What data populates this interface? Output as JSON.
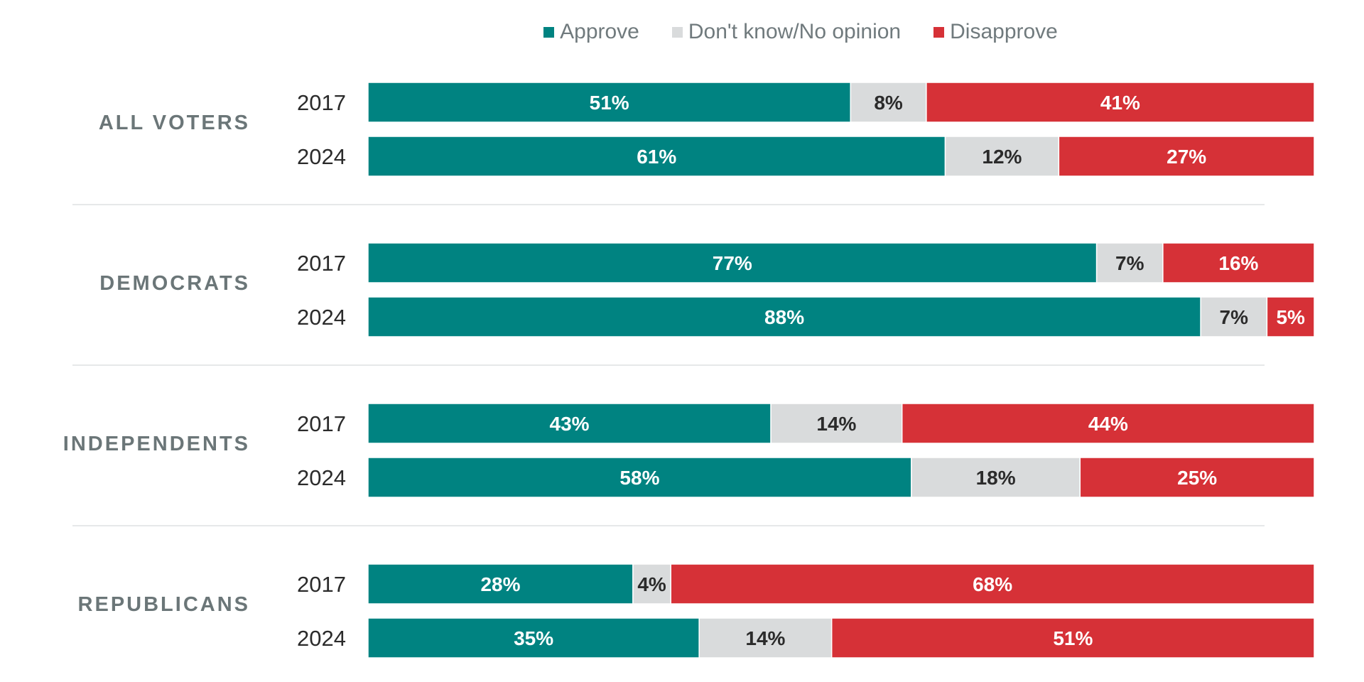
{
  "chart_data": {
    "type": "bar",
    "orientation": "horizontal",
    "stacked": true,
    "legend_position": "top-center",
    "legend": [
      "Approve",
      "Don't know/No opinion",
      "Disapprove"
    ],
    "colors": {
      "Approve": "#008381",
      "Don't know/No opinion": "#d9dbdc",
      "Disapprove": "#d63137"
    },
    "label_colors": {
      "Approve": "#ffffff",
      "Don't know/No opinion": "#2b2b2b",
      "Disapprove": "#ffffff"
    },
    "groups": [
      {
        "label": "ALL VOTERS",
        "rows": [
          {
            "year": "2017",
            "values": [
              51,
              8,
              41
            ],
            "labels": [
              "51%",
              "8%",
              "41%"
            ]
          },
          {
            "year": "2024",
            "values": [
              61,
              12,
              27
            ],
            "labels": [
              "61%",
              "12%",
              "27%"
            ]
          }
        ]
      },
      {
        "label": "DEMOCRATS",
        "rows": [
          {
            "year": "2017",
            "values": [
              77,
              7,
              16
            ],
            "labels": [
              "77%",
              "7%",
              "16%"
            ]
          },
          {
            "year": "2024",
            "values": [
              88,
              7,
              5
            ],
            "labels": [
              "88%",
              "7%",
              "5%"
            ]
          }
        ]
      },
      {
        "label": "INDEPENDENTS",
        "rows": [
          {
            "year": "2017",
            "values": [
              43,
              14,
              44
            ],
            "labels": [
              "43%",
              "14%",
              "44%"
            ]
          },
          {
            "year": "2024",
            "values": [
              58,
              18,
              25
            ],
            "labels": [
              "58%",
              "18%",
              "25%"
            ]
          }
        ]
      },
      {
        "label": "REPUBLICANS",
        "rows": [
          {
            "year": "2017",
            "values": [
              28,
              4,
              68
            ],
            "labels": [
              "28%",
              "4%",
              "68%"
            ]
          },
          {
            "year": "2024",
            "values": [
              35,
              14,
              51
            ],
            "labels": [
              "35%",
              "14%",
              "51%"
            ]
          }
        ]
      }
    ]
  }
}
